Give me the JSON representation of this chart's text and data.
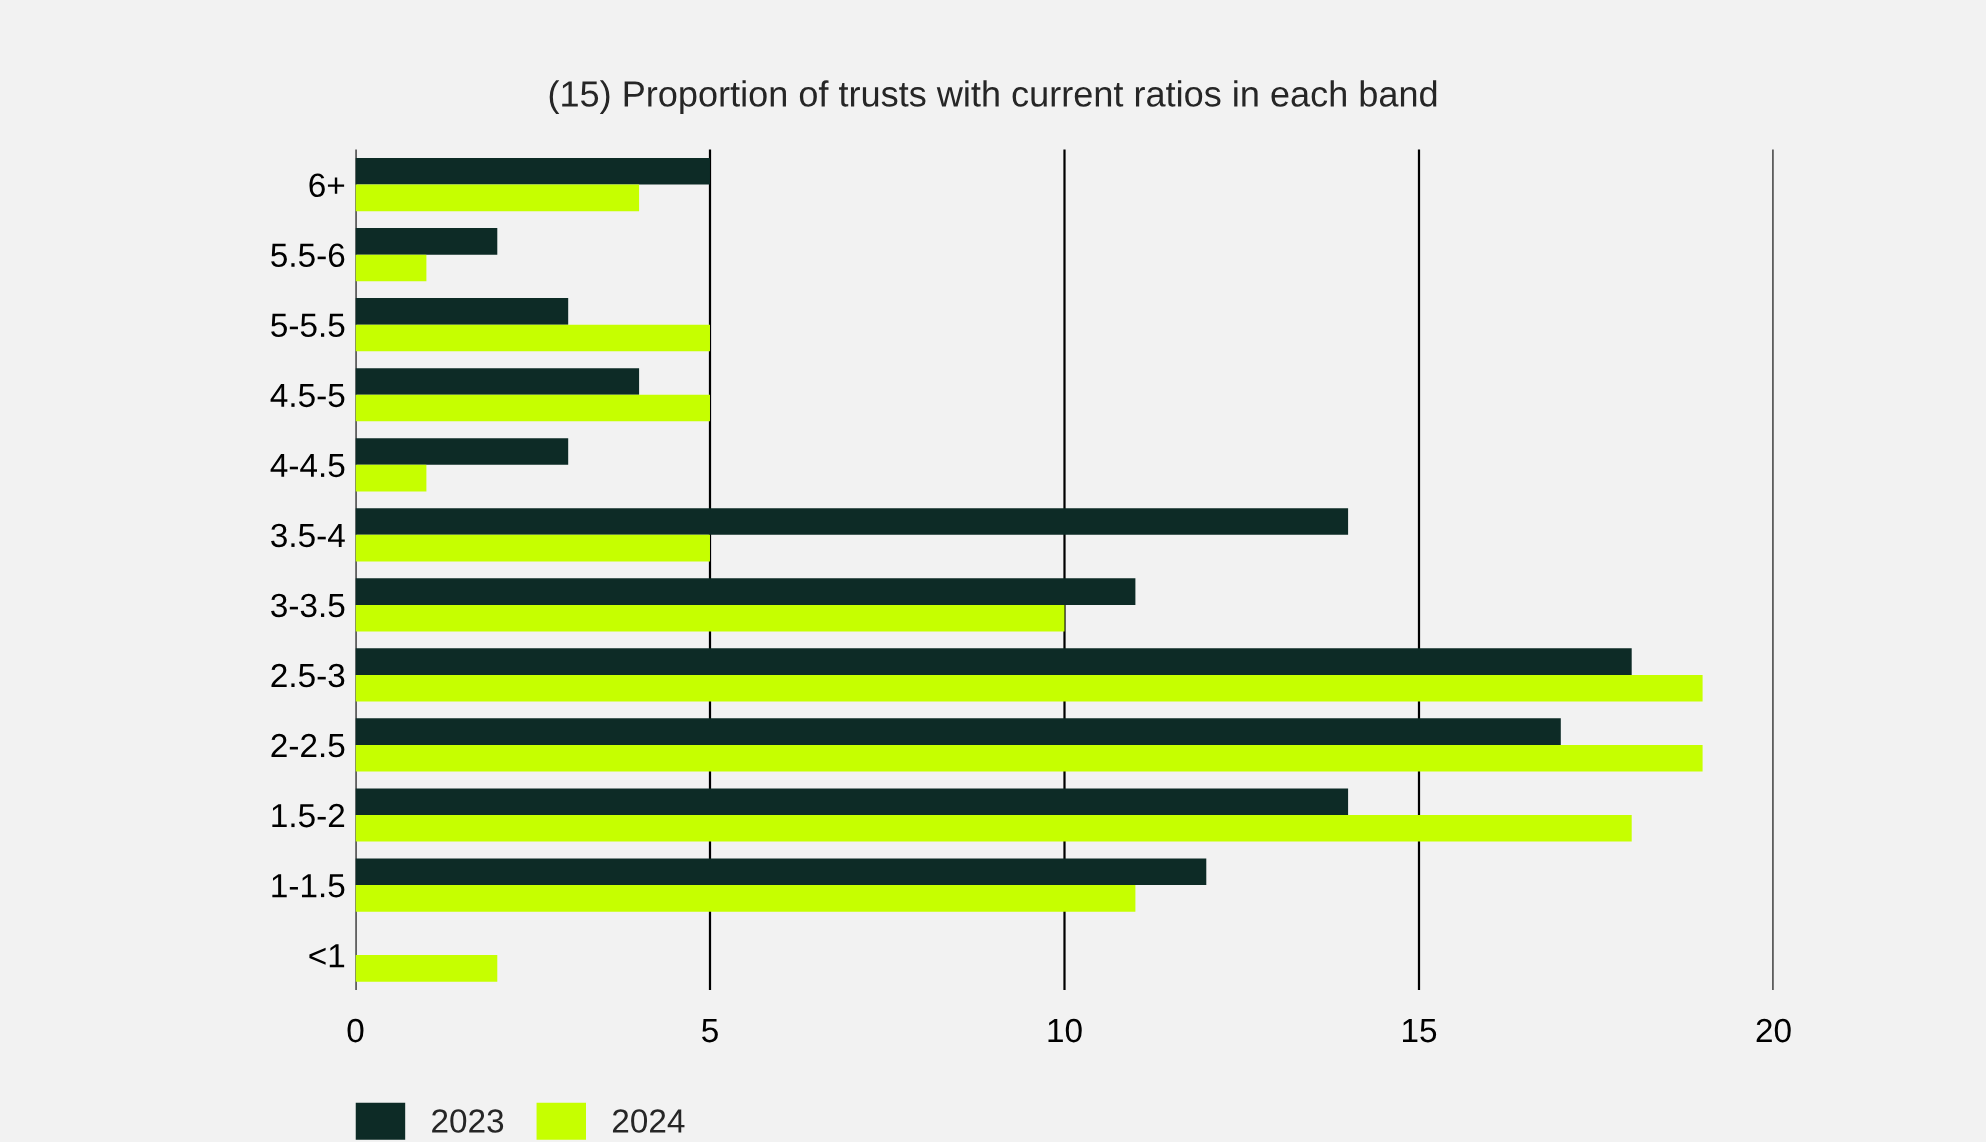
{
  "chart_data": {
    "type": "bar",
    "orientation": "horizontal",
    "title": "(15) Proportion of trusts with current ratios in each band",
    "categories": [
      "6+",
      "5.5-6",
      "5-5.5",
      "4.5-5",
      "4-4.5",
      "3.5-4",
      "3-3.5",
      "2.5-3",
      "2-2.5",
      "1.5-2",
      "1-1.5",
      "<1"
    ],
    "series": [
      {
        "name": "2023",
        "color": "#0d2b26",
        "values": [
          5,
          2,
          3,
          4,
          3,
          14,
          11,
          18,
          17,
          14,
          12,
          null
        ]
      },
      {
        "name": "2024",
        "color": "#c6ff00",
        "values": [
          4,
          1,
          5,
          5,
          1,
          5,
          10,
          19,
          19,
          18,
          11,
          2
        ]
      }
    ],
    "xlim": [
      0,
      20
    ],
    "xticks": [
      0,
      5,
      10,
      15,
      20
    ],
    "grid": "x",
    "legend": "bottom left"
  }
}
